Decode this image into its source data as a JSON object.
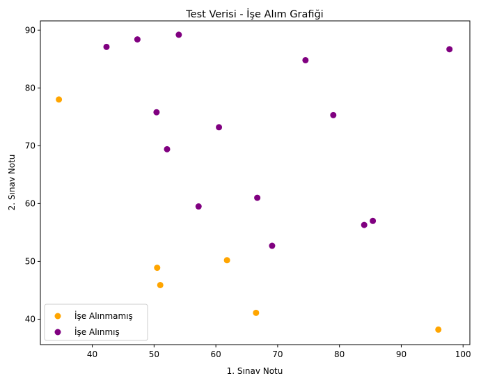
{
  "chart_data": {
    "type": "scatter",
    "title": "Test Verisi - İşe Alım Grafiği",
    "xlabel": "1. Sınav Notu",
    "ylabel": "2. Sınav Notu",
    "xlim": [
      31.6,
      101.1
    ],
    "ylim": [
      35.6,
      91.6
    ],
    "xticks": [
      40,
      50,
      60,
      70,
      80,
      90,
      100
    ],
    "yticks": [
      40,
      50,
      60,
      70,
      80,
      90
    ],
    "grid": false,
    "legend_position": "lower-left",
    "series": [
      {
        "name": "İşe Alınmamış",
        "color": "#ffa500",
        "points": [
          {
            "x": 34.6,
            "y": 78.0
          },
          {
            "x": 50.5,
            "y": 48.9
          },
          {
            "x": 51.0,
            "y": 45.9
          },
          {
            "x": 61.8,
            "y": 50.2
          },
          {
            "x": 66.5,
            "y": 41.1
          },
          {
            "x": 96.0,
            "y": 38.2
          }
        ]
      },
      {
        "name": "İşe Alınmış",
        "color": "#800080",
        "points": [
          {
            "x": 42.3,
            "y": 87.1
          },
          {
            "x": 47.3,
            "y": 88.4
          },
          {
            "x": 54.0,
            "y": 89.2
          },
          {
            "x": 74.5,
            "y": 84.8
          },
          {
            "x": 97.8,
            "y": 86.7
          },
          {
            "x": 50.4,
            "y": 75.8
          },
          {
            "x": 60.5,
            "y": 73.2
          },
          {
            "x": 79.0,
            "y": 75.3
          },
          {
            "x": 52.1,
            "y": 69.4
          },
          {
            "x": 57.2,
            "y": 59.5
          },
          {
            "x": 66.7,
            "y": 61.0
          },
          {
            "x": 84.0,
            "y": 56.3
          },
          {
            "x": 85.4,
            "y": 57.0
          },
          {
            "x": 69.1,
            "y": 52.7
          }
        ]
      }
    ]
  }
}
